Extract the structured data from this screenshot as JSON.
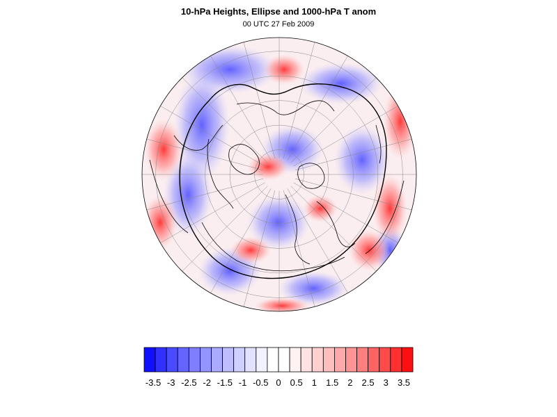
{
  "title": "10-hPa Heights, Ellipse and 1000-hPa T anom",
  "subtitle": "00 UTC 27 Feb 2009",
  "projection": "north-polar-stereographic",
  "colorbar": {
    "colors": [
      "#1010ff",
      "#3030ff",
      "#4a4aff",
      "#6464ff",
      "#7e7eff",
      "#9494ff",
      "#aaaaff",
      "#bebeff",
      "#d0d0ff",
      "#e2e2ff",
      "#f2f2ff",
      "#ffffff",
      "#ffffff",
      "#fff2f2",
      "#ffe2e2",
      "#ffd0d0",
      "#ffbebe",
      "#ffaaaa",
      "#ff9494",
      "#ff7e7e",
      "#ff6464",
      "#ff4a4a",
      "#ff3030",
      "#ff1010"
    ],
    "tick_labels": [
      "-3.5",
      "-3",
      "-2.5",
      "-2",
      "-1.5",
      "-1",
      "-0.5",
      "0",
      "0.5",
      "1",
      "1.5",
      "2",
      "2.5",
      "3",
      "3.5"
    ]
  },
  "colors": {
    "negative": "#3c3cff",
    "positive": "#ff3c3c",
    "contour": "#000000"
  }
}
